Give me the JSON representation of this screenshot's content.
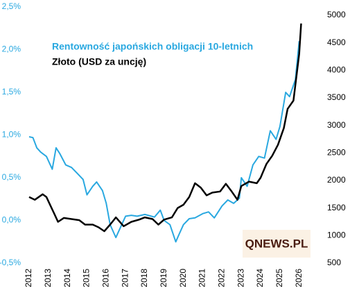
{
  "chart_data": {
    "type": "line",
    "watermark": "QNEWS.PL",
    "xlim": [
      2011.8,
      2026.8
    ],
    "xticks": [
      2012,
      2013,
      2014,
      2015,
      2016,
      2017,
      2018,
      2019,
      2020,
      2021,
      2022,
      2023,
      2024,
      2025,
      2026
    ],
    "ylim": [
      -0.5,
      2.5
    ],
    "yticks": [
      {
        "value": -0.5,
        "label": "-0,5%"
      },
      {
        "value": 0,
        "label": "0,0%"
      },
      {
        "value": 0.5,
        "label": "0,5%"
      },
      {
        "value": 1,
        "label": "1,0%"
      },
      {
        "value": 1.5,
        "label": "1,5%"
      },
      {
        "value": 2,
        "label": "2,0%"
      },
      {
        "value": 2.5,
        "label": "2,5%"
      }
    ],
    "y2lim": [
      500,
      5150
    ],
    "y2ticks": [
      500,
      1000,
      1500,
      2000,
      2500,
      3000,
      3500,
      4000,
      4500,
      5000
    ],
    "series": [
      {
        "name": "Rentowność japońskich obligacji 10-letnich",
        "color": "#29a8e0",
        "axis": "y",
        "x": [
          2012.0,
          2012.2,
          2012.4,
          2012.6,
          2012.9,
          2013.2,
          2013.4,
          2013.6,
          2013.9,
          2014.2,
          2014.5,
          2014.8,
          2015.0,
          2015.3,
          2015.5,
          2015.8,
          2016.0,
          2016.2,
          2016.5,
          2016.8,
          2017.0,
          2017.3,
          2017.6,
          2018.0,
          2018.5,
          2018.8,
          2019.0,
          2019.3,
          2019.6,
          2019.8,
          2020.0,
          2020.3,
          2020.6,
          2021.0,
          2021.3,
          2021.6,
          2022.0,
          2022.3,
          2022.6,
          2022.9,
          2023.0,
          2023.3,
          2023.6,
          2023.9,
          2024.2,
          2024.5,
          2024.8,
          2025.0,
          2025.3,
          2025.5,
          2025.8,
          2026.0
        ],
        "values": [
          0.98,
          0.97,
          0.85,
          0.8,
          0.75,
          0.6,
          0.85,
          0.78,
          0.65,
          0.62,
          0.55,
          0.48,
          0.3,
          0.4,
          0.45,
          0.35,
          0.2,
          -0.05,
          -0.2,
          -0.05,
          0.05,
          0.06,
          0.05,
          0.07,
          0.04,
          0.12,
          0.0,
          -0.05,
          -0.25,
          -0.15,
          -0.05,
          0.02,
          0.03,
          0.08,
          0.1,
          0.03,
          0.17,
          0.24,
          0.2,
          0.26,
          0.5,
          0.4,
          0.65,
          0.75,
          0.73,
          1.05,
          0.95,
          1.1,
          1.5,
          1.45,
          1.65,
          2.1
        ]
      },
      {
        "name": "Złoto (USD za uncję)",
        "color": "#000000",
        "axis": "y2",
        "x": [
          2012.0,
          2012.3,
          2012.7,
          2012.9,
          2013.3,
          2013.5,
          2013.8,
          2014.2,
          2014.6,
          2014.9,
          2015.3,
          2015.6,
          2015.9,
          2016.2,
          2016.5,
          2016.9,
          2017.3,
          2017.7,
          2018.0,
          2018.4,
          2018.7,
          2019.0,
          2019.4,
          2019.7,
          2020.0,
          2020.3,
          2020.6,
          2020.9,
          2021.2,
          2021.5,
          2021.9,
          2022.2,
          2022.5,
          2022.8,
          2023.0,
          2023.4,
          2023.8,
          2024.0,
          2024.3,
          2024.6,
          2024.9,
          2025.2,
          2025.4,
          2025.7,
          2026.0,
          2026.1
        ],
        "values": [
          1700,
          1650,
          1750,
          1700,
          1400,
          1250,
          1320,
          1300,
          1280,
          1200,
          1200,
          1150,
          1080,
          1200,
          1330,
          1170,
          1250,
          1290,
          1330,
          1300,
          1200,
          1290,
          1330,
          1500,
          1560,
          1700,
          1950,
          1870,
          1730,
          1780,
          1800,
          1940,
          1800,
          1650,
          1900,
          1980,
          1950,
          2050,
          2300,
          2450,
          2650,
          2950,
          3300,
          3450,
          4300,
          4850
        ]
      }
    ]
  }
}
